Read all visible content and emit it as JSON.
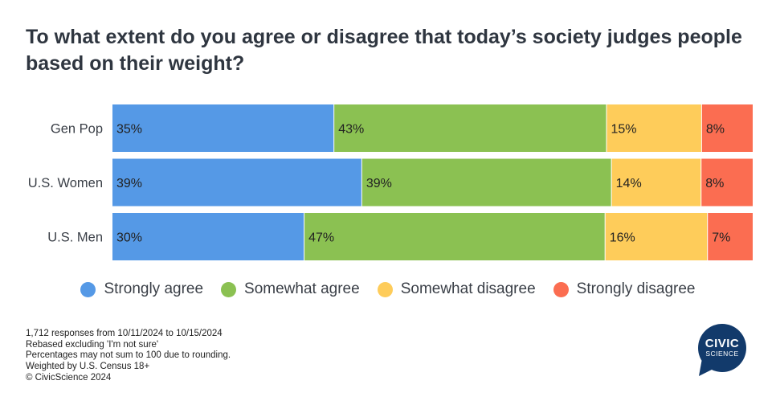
{
  "title": "To what extent do you agree or disagree that today’s society judges people based on their weight?",
  "chart_data": {
    "type": "bar",
    "orientation": "horizontal",
    "stacked": true,
    "categories": [
      "Gen Pop",
      "U.S. Women",
      "U.S. Men"
    ],
    "series": [
      {
        "name": "Strongly agree",
        "color": "#5599e6",
        "values": [
          35,
          39,
          30
        ],
        "labels": [
          "35%",
          "39%",
          "30%"
        ]
      },
      {
        "name": "Somewhat agree",
        "color": "#8bc152",
        "values": [
          43,
          39,
          47
        ],
        "labels": [
          "43%",
          "39%",
          "47%"
        ]
      },
      {
        "name": "Somewhat disagree",
        "color": "#fecc5a",
        "values": [
          15,
          14,
          16
        ],
        "labels": [
          "15%",
          "14%",
          "16%"
        ]
      },
      {
        "name": "Strongly disagree",
        "color": "#fb6d51",
        "values": [
          8,
          8,
          7
        ],
        "labels": [
          "8%",
          "8%",
          "7%"
        ]
      }
    ],
    "legend_position": "bottom",
    "grid": false
  },
  "notes": [
    "1,712 responses from 10/11/2024 to 10/15/2024",
    "Rebased excluding 'I'm not sure'",
    "Percentages may not sum to 100 due to rounding.",
    "Weighted by U.S. Census 18+",
    "© CivicScience 2024"
  ],
  "logo": {
    "line1": "CIVIC",
    "line2": "SCIENCE",
    "color": "#123a6b"
  }
}
